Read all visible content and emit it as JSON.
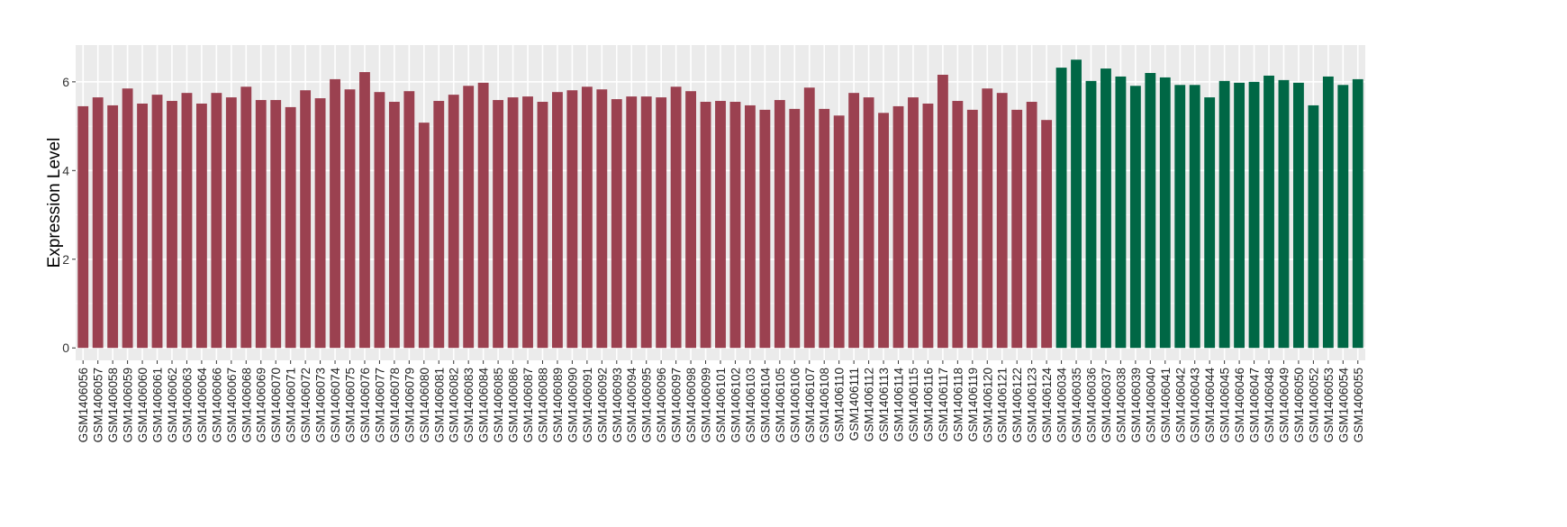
{
  "chart_data": {
    "type": "bar",
    "title": "",
    "xlabel": "",
    "ylabel": "Expression Level",
    "ylim": [
      -0.28,
      6.83
    ],
    "yticks": [
      0,
      2,
      4,
      6
    ],
    "grid": true,
    "legend": "none",
    "colors": {
      "group1": "#9b4150",
      "group2": "#006745",
      "panel": "#ebebeb",
      "grid": "#ffffff"
    },
    "categories": [
      "GSM1406056",
      "GSM1406057",
      "GSM1406058",
      "GSM1406059",
      "GSM1406060",
      "GSM1406061",
      "GSM1406062",
      "GSM1406063",
      "GSM1406064",
      "GSM1406066",
      "GSM1406067",
      "GSM1406068",
      "GSM1406069",
      "GSM1406070",
      "GSM1406071",
      "GSM1406072",
      "GSM1406073",
      "GSM1406074",
      "GSM1406075",
      "GSM1406076",
      "GSM1406077",
      "GSM1406078",
      "GSM1406079",
      "GSM1406080",
      "GSM1406081",
      "GSM1406082",
      "GSM1406083",
      "GSM1406084",
      "GSM1406085",
      "GSM1406086",
      "GSM1406087",
      "GSM1406088",
      "GSM1406089",
      "GSM1406090",
      "GSM1406091",
      "GSM1406092",
      "GSM1406093",
      "GSM1406094",
      "GSM1406095",
      "GSM1406096",
      "GSM1406097",
      "GSM1406098",
      "GSM1406099",
      "GSM1406101",
      "GSM1406102",
      "GSM1406103",
      "GSM1406104",
      "GSM1406105",
      "GSM1406106",
      "GSM1406107",
      "GSM1406108",
      "GSM1406110",
      "GSM1406111",
      "GSM1406112",
      "GSM1406113",
      "GSM1406114",
      "GSM1406115",
      "GSM1406116",
      "GSM1406117",
      "GSM1406118",
      "GSM1406119",
      "GSM1406120",
      "GSM1406121",
      "GSM1406122",
      "GSM1406123",
      "GSM1406124",
      "GSM1406034",
      "GSM1406035",
      "GSM1406036",
      "GSM1406037",
      "GSM1406038",
      "GSM1406039",
      "GSM1406040",
      "GSM1406041",
      "GSM1406042",
      "GSM1406043",
      "GSM1406044",
      "GSM1406045",
      "GSM1406046",
      "GSM1406047",
      "GSM1406048",
      "GSM1406049",
      "GSM1406050",
      "GSM1406052",
      "GSM1406053",
      "GSM1406054",
      "GSM1406055"
    ],
    "values": [
      5.45,
      5.65,
      5.47,
      5.85,
      5.51,
      5.71,
      5.57,
      5.75,
      5.51,
      5.75,
      5.65,
      5.89,
      5.59,
      5.59,
      5.43,
      5.81,
      5.63,
      6.06,
      5.83,
      6.22,
      5.77,
      5.55,
      5.79,
      5.08,
      5.57,
      5.71,
      5.91,
      5.98,
      5.59,
      5.65,
      5.67,
      5.55,
      5.77,
      5.81,
      5.89,
      5.83,
      5.61,
      5.67,
      5.67,
      5.65,
      5.89,
      5.79,
      5.55,
      5.57,
      5.55,
      5.47,
      5.37,
      5.59,
      5.39,
      5.87,
      5.39,
      5.24,
      5.75,
      5.65,
      5.3,
      5.45,
      5.65,
      5.51,
      6.16,
      5.57,
      5.37,
      5.85,
      5.75,
      5.37,
      5.55,
      5.14,
      6.32,
      6.5,
      6.02,
      6.3,
      6.12,
      5.91,
      6.2,
      6.1,
      5.93,
      5.93,
      5.65,
      6.02,
      5.98,
      6.0,
      6.14,
      6.04,
      5.98,
      5.47,
      6.12,
      5.93,
      6.06
    ],
    "groups": [
      1,
      1,
      1,
      1,
      1,
      1,
      1,
      1,
      1,
      1,
      1,
      1,
      1,
      1,
      1,
      1,
      1,
      1,
      1,
      1,
      1,
      1,
      1,
      1,
      1,
      1,
      1,
      1,
      1,
      1,
      1,
      1,
      1,
      1,
      1,
      1,
      1,
      1,
      1,
      1,
      1,
      1,
      1,
      1,
      1,
      1,
      1,
      1,
      1,
      1,
      1,
      1,
      1,
      1,
      1,
      1,
      1,
      1,
      1,
      1,
      1,
      1,
      1,
      1,
      1,
      1,
      2,
      2,
      2,
      2,
      2,
      2,
      2,
      2,
      2,
      2,
      2,
      2,
      2,
      2,
      2,
      2,
      2,
      2,
      2,
      2,
      2
    ]
  }
}
